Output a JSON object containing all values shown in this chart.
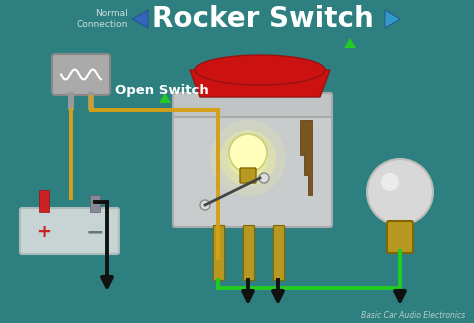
{
  "bg_color": "#2e8080",
  "title": "Rocker Switch",
  "title_color": "white",
  "title_fontsize": 20,
  "nav_arrow_left_color": "#3366bb",
  "nav_arrow_right_color": "#3399cc",
  "label_open_switch": "Open Switch",
  "label_normal_connection": "Normal\nConnection",
  "label_watermark": "Basic Car Audio Electronics",
  "wire_yellow": "#d4a017",
  "wire_green": "#22cc22",
  "wire_black": "#111111",
  "battery_body_color": "#c8d4d4",
  "battery_border_color": "#aabbbb",
  "battery_pos_color": "#cc2222",
  "battery_neg_color": "#888899",
  "switch_body_color": "#c8cccc",
  "switch_body_border": "#aaaaaa",
  "switch_top_bar_color": "#bbbbbb",
  "switch_top_color": "#cc1111",
  "pin_color": "#b89820",
  "pin_border": "#806800",
  "bulb_glow_color": "#ffffaa",
  "bulb_glass_color": "#ddddcc",
  "bulb_base_color": "#b89820",
  "fuse_body_color": "#aaaaaa",
  "fuse_border_color": "#888888",
  "fuse_leg_color": "#999999",
  "contact_color": "#7a5520",
  "green_tri_color": "#22cc22"
}
